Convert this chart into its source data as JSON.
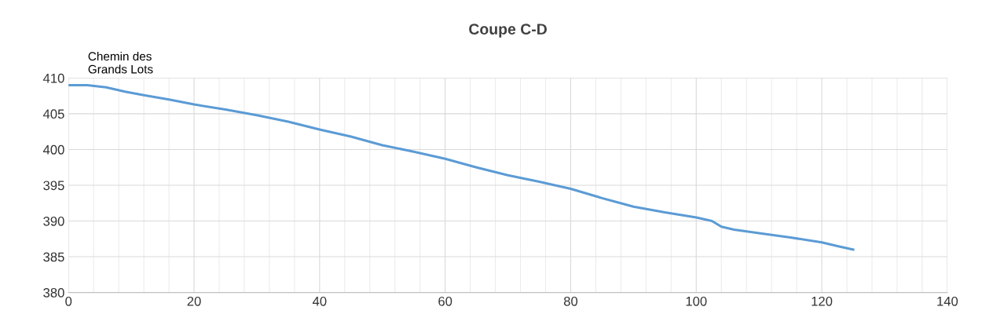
{
  "chart_data": {
    "type": "line",
    "title": "Coupe C-D",
    "annotations": [
      "Chemin des\nGrands Lots"
    ],
    "x": [
      0,
      3,
      6,
      9,
      12,
      16,
      20,
      25,
      30,
      35,
      40,
      45,
      50,
      55,
      60,
      65,
      70,
      75,
      80,
      85,
      90,
      95,
      100,
      102.5,
      104,
      106,
      110,
      115,
      120,
      122.5,
      125
    ],
    "series": [
      {
        "color": "#5b9bd5",
        "values": [
          409,
          409,
          408.7,
          408.1,
          407.6,
          407,
          406.3,
          405.6,
          404.8,
          403.9,
          402.8,
          401.8,
          400.6,
          399.7,
          398.7,
          397.5,
          396.4,
          395.5,
          394.5,
          393.2,
          392,
          391.2,
          390.5,
          390,
          389.2,
          388.8,
          388.3,
          387.7,
          387,
          386.5,
          386
        ]
      }
    ],
    "xlim": [
      0,
      140
    ],
    "xticks": [
      0,
      20,
      40,
      60,
      80,
      100,
      120,
      140
    ],
    "ylim": [
      380,
      410
    ],
    "yticks": [
      380,
      385,
      390,
      395,
      400,
      405,
      410
    ],
    "grid": true,
    "marker": "none",
    "line_style": "solid",
    "legend": false
  }
}
